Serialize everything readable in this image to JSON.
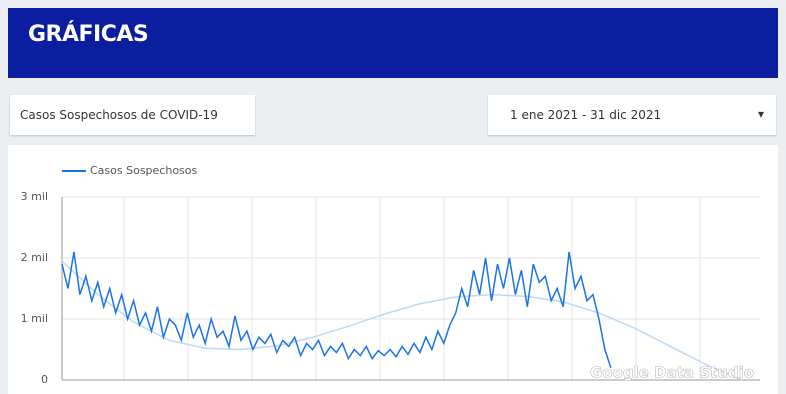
{
  "header": {
    "title": "GRÁFICAS"
  },
  "controls": {
    "metric": "Casos Sospechosos de COVID-19",
    "date_range": "1 ene 2021 - 31 dic 2021",
    "dropdown_icon": "▾"
  },
  "watermark": "Google Data Studio",
  "chart_data": {
    "type": "line",
    "series": [
      {
        "name": "Casos Sospechosos",
        "color": "#1a73e8",
        "values": [
          1900,
          1500,
          2100,
          1400,
          1700,
          1300,
          1600,
          1200,
          1500,
          1100,
          1400,
          1000,
          1300,
          900,
          1100,
          800,
          1200,
          700,
          1000,
          900,
          650,
          1100,
          700,
          900,
          600,
          1000,
          700,
          800,
          550,
          1050,
          650,
          800,
          500,
          700,
          600,
          750,
          450,
          650,
          550,
          700,
          400,
          600,
          500,
          650,
          400,
          550,
          450,
          600,
          350,
          500,
          400,
          550,
          350,
          480,
          400,
          500,
          380,
          550,
          420,
          600,
          450,
          700,
          500,
          800,
          600,
          900,
          1100,
          1500,
          1200,
          1800,
          1400,
          2000,
          1300,
          1900,
          1500,
          2000,
          1400,
          1800,
          1200,
          1900,
          1600,
          1700,
          1300,
          1500,
          1200,
          2100,
          1500,
          1700,
          1300,
          1400,
          1000,
          500,
          200,
          null,
          null,
          null,
          null,
          null,
          null,
          null,
          null,
          null,
          null,
          null,
          null,
          null,
          null,
          null,
          null,
          null,
          null,
          null,
          null,
          null,
          null,
          null,
          null,
          null
        ]
      }
    ],
    "trendline": {
      "color": "#bcd8f7",
      "values": [
        1950,
        1400,
        950,
        650,
        520,
        500,
        560,
        700,
        880,
        1080,
        1250,
        1360,
        1400,
        1370,
        1280,
        1100,
        850,
        550,
        250,
        0
      ]
    },
    "ylim": [
      0,
      3000
    ],
    "yticks": [
      0,
      {
        "value": 1000,
        "label": "1 mil"
      },
      {
        "value": 2000,
        "label": "2 mil"
      },
      {
        "value": 3000,
        "label": "3 mil"
      }
    ],
    "grid": true
  }
}
